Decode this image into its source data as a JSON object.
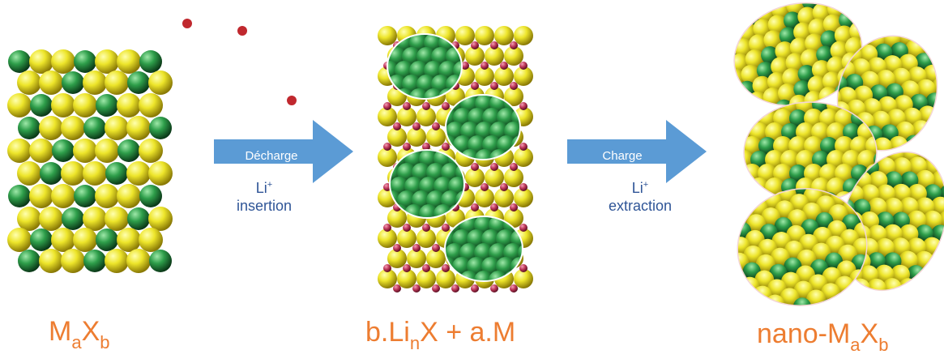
{
  "colors": {
    "sulfur": "#E8E02A",
    "metal": "#2E8B45",
    "lithium": "#C0395A",
    "arrow": "#5B9BD5",
    "label": "#ED7D31",
    "caption": "#2F5597",
    "li_ion_dot": "#C0282E"
  },
  "icons": [
    "crystal-structure-pristine",
    "crystal-structure-discharged",
    "crystal-structure-nano",
    "right-arrow"
  ],
  "discharge": {
    "arrow_label": "Décharge",
    "ion": "Li",
    "ion_charge": "+",
    "action": "insertion"
  },
  "charge": {
    "arrow_label": "Charge",
    "ion": "Li",
    "ion_charge": "+",
    "action": "extraction"
  },
  "labels": {
    "pristine": {
      "m": "M",
      "a": "a",
      "x": "X",
      "b": "b"
    },
    "discharged": {
      "pre": "b.Li",
      "n": "n",
      "post": "X + a.M"
    },
    "nano": {
      "pre": "nano-M",
      "a": "a",
      "x": "X",
      "b": "b"
    }
  }
}
